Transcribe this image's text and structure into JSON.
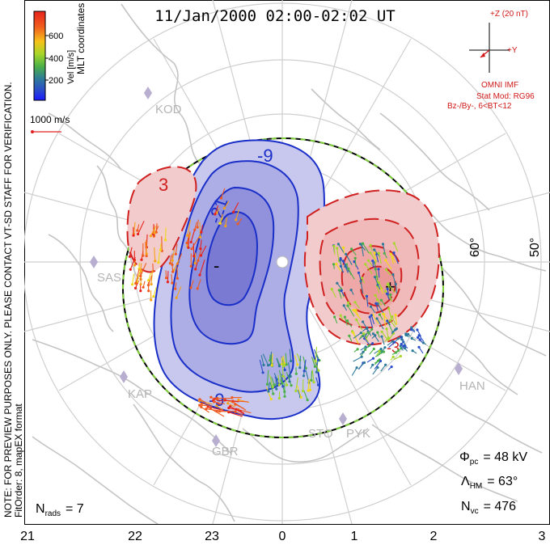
{
  "title": "11/Jan/2000 02:00-02:02 UT",
  "colorbar": {
    "label": "Vel [m/s]",
    "ticks": [
      "600",
      "400",
      "200"
    ],
    "colors": [
      "#e8221c",
      "#f28a1e",
      "#f6d61a",
      "#8ad22e",
      "#2e9a5a",
      "#2e5fb8",
      "#1a1aff"
    ]
  },
  "coord_label": "MLT coordinates",
  "vector_scale": {
    "label": "1000 m/s",
    "color": "#e02020"
  },
  "verification_note": "FOR VERIFICATION.",
  "preview_note": "NOTE: FOR PREVIEW PURPOSES ONLY. PLEASE CONTACT VT-SD STAFF FOR VERIFICATION.",
  "fit_note": "FitOrder: 8, mapEX format",
  "imf": {
    "z_label": "+Z (20 nT)",
    "y_label": "+Y",
    "source": "OMNI IMF",
    "stat_mod": "Stat Mod: RG96",
    "bin": "Bz-/By-, 6<BT<12",
    "color": "#d01818"
  },
  "stations": [
    {
      "name": "KOD"
    },
    {
      "name": "SAS"
    },
    {
      "name": "KAP"
    },
    {
      "name": "GBR"
    },
    {
      "name": "STO"
    },
    {
      "name": "PYK"
    },
    {
      "name": "HAN"
    }
  ],
  "contour_labels": {
    "neg_outer": "-9",
    "neg_inner": "-21",
    "neg_min": "-",
    "neg_low": "-9",
    "pos_left": "3",
    "pos_right_min": "+",
    "pos_right": "-3"
  },
  "lat_labels": [
    "60°",
    "50°"
  ],
  "stats": {
    "phi_pc": {
      "sym": "Φ",
      "sub": "pc",
      "value": "= 48 kV"
    },
    "lambda_hm": {
      "sym": "Λ",
      "sub": "HM",
      "value": "= 63°"
    },
    "n_vc": {
      "sym": "N",
      "sub": "vc",
      "value": "= 476"
    },
    "n_rads": {
      "sym": "N",
      "sub": "rads",
      "value": "= 7"
    }
  },
  "mlt_axis": [
    "21",
    "22",
    "23",
    "0",
    "1",
    "2",
    "3"
  ]
}
